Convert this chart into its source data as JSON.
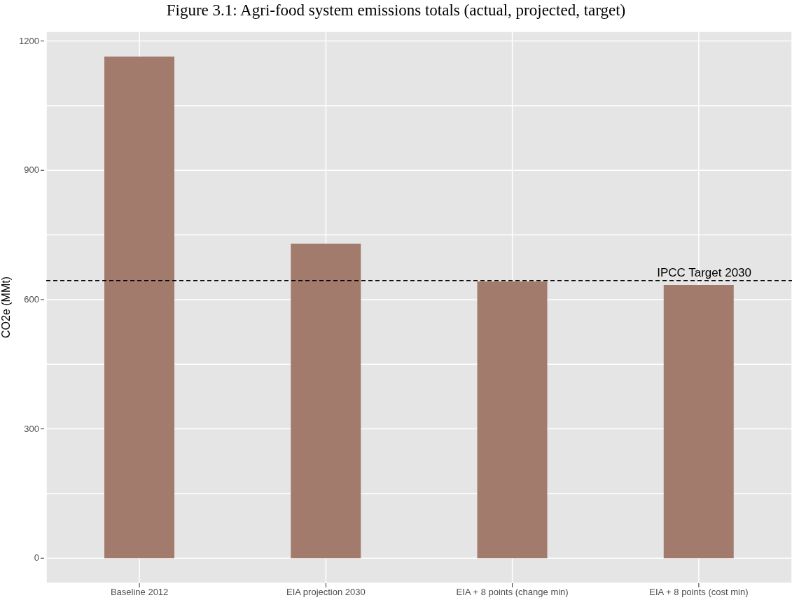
{
  "chart_data": {
    "type": "bar",
    "title": "Figure 3.1: Agri-food system emissions totals (actual, projected, target)",
    "ylabel": "CO2e (MMt)",
    "categories": [
      "Baseline 2012",
      "EIA projection 2030",
      "EIA + 8 points (change min)",
      "EIA + 8 points (cost min)"
    ],
    "values": [
      1164,
      730,
      642,
      634
    ],
    "color": "#a27b6c",
    "ylim": [
      -58,
      1222
    ],
    "yticks": [
      0,
      {
        "value": 150,
        "label": null
      },
      300,
      {
        "value": 450,
        "label": null
      },
      600,
      {
        "value": 750,
        "label": null
      },
      900,
      {
        "value": 1050,
        "label": null
      },
      1200
    ],
    "grid": true,
    "legend": false,
    "ref_lines": [
      {
        "axis": "y",
        "value": 644,
        "label": "IPCC Target 2030",
        "color": "#000000",
        "line_style": "dashed"
      }
    ]
  }
}
